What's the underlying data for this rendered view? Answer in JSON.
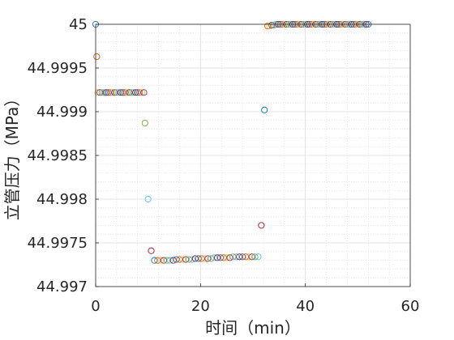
{
  "chart_data": {
    "type": "scatter",
    "xlabel": "时间（min）",
    "ylabel": "立管压力（MPa）",
    "xlim": [
      0,
      60
    ],
    "ylim": [
      44.997,
      45
    ],
    "x_ticks": [
      "0",
      "20",
      "40",
      "60"
    ],
    "y_ticks": [
      "44.997",
      "44.9975",
      "44.998",
      "44.9985",
      "44.999",
      "44.9995",
      "45"
    ],
    "grid": "major and minor, dotted",
    "marker": "open circle",
    "colors": [
      "#0072BD",
      "#D95319",
      "#EDB120",
      "#7E2F8E",
      "#77AC30",
      "#4DBEEE",
      "#A2142F"
    ],
    "points": [
      [
        0.0,
        45.0
      ],
      [
        0.2,
        44.99963
      ],
      [
        0.4,
        44.99922
      ],
      [
        0.8,
        44.99922
      ],
      [
        1.2,
        44.99922
      ],
      [
        1.6,
        44.99922
      ],
      [
        2.0,
        44.99922
      ],
      [
        2.4,
        44.99922
      ],
      [
        2.8,
        44.99922
      ],
      [
        3.2,
        44.99922
      ],
      [
        3.6,
        44.99922
      ],
      [
        4.0,
        44.99922
      ],
      [
        4.4,
        44.99922
      ],
      [
        4.8,
        44.99922
      ],
      [
        5.2,
        44.99922
      ],
      [
        5.6,
        44.99922
      ],
      [
        6.0,
        44.99922
      ],
      [
        6.4,
        44.99922
      ],
      [
        6.8,
        44.99922
      ],
      [
        7.2,
        44.99922
      ],
      [
        7.6,
        44.99922
      ],
      [
        8.0,
        44.99922
      ],
      [
        8.4,
        44.99922
      ],
      [
        8.8,
        44.99922
      ],
      [
        9.2,
        44.99922
      ],
      [
        9.4,
        44.99887
      ],
      [
        10.0,
        44.998
      ],
      [
        10.6,
        44.99741
      ],
      [
        11.2,
        44.9973
      ],
      [
        11.8,
        44.9973
      ],
      [
        12.4,
        44.9973
      ],
      [
        13.0,
        44.9973
      ],
      [
        13.6,
        44.9973
      ],
      [
        14.2,
        44.9973
      ],
      [
        14.8,
        44.9973
      ],
      [
        15.4,
        44.99731
      ],
      [
        16.0,
        44.99731
      ],
      [
        16.6,
        44.99731
      ],
      [
        17.2,
        44.99731
      ],
      [
        17.8,
        44.99731
      ],
      [
        18.4,
        44.99731
      ],
      [
        19.0,
        44.99732
      ],
      [
        19.6,
        44.99732
      ],
      [
        20.2,
        44.99732
      ],
      [
        20.8,
        44.99732
      ],
      [
        21.4,
        44.99732
      ],
      [
        22.0,
        44.99732
      ],
      [
        22.6,
        44.99733
      ],
      [
        23.2,
        44.99733
      ],
      [
        23.8,
        44.99733
      ],
      [
        24.4,
        44.99733
      ],
      [
        25.0,
        44.99733
      ],
      [
        25.6,
        44.99733
      ],
      [
        26.2,
        44.99734
      ],
      [
        26.8,
        44.99734
      ],
      [
        27.4,
        44.99734
      ],
      [
        28.0,
        44.99734
      ],
      [
        28.6,
        44.99734
      ],
      [
        29.2,
        44.99734
      ],
      [
        29.8,
        44.99734
      ],
      [
        30.4,
        44.99734
      ],
      [
        31.0,
        44.99734
      ],
      [
        31.6,
        44.9977
      ],
      [
        32.2,
        44.99902
      ],
      [
        32.8,
        44.99998
      ],
      [
        33.2,
        44.99998
      ],
      [
        33.6,
        44.99999
      ],
      [
        34.0,
        44.99999
      ],
      [
        34.4,
        45.0
      ],
      [
        34.8,
        45.0
      ],
      [
        35.2,
        45.0
      ],
      [
        35.6,
        45.0
      ],
      [
        36.0,
        45.0
      ],
      [
        36.4,
        45.0
      ],
      [
        36.8,
        45.0
      ],
      [
        37.2,
        45.0
      ],
      [
        37.6,
        45.0
      ],
      [
        38.0,
        45.0
      ],
      [
        38.4,
        45.0
      ],
      [
        38.8,
        45.0
      ],
      [
        39.2,
        45.0
      ],
      [
        39.6,
        45.0
      ],
      [
        40.0,
        45.0
      ],
      [
        40.4,
        45.0
      ],
      [
        40.8,
        45.0
      ],
      [
        41.2,
        45.0
      ],
      [
        41.6,
        45.0
      ],
      [
        42.0,
        45.0
      ],
      [
        42.4,
        45.0
      ],
      [
        42.8,
        45.0
      ],
      [
        43.2,
        45.0
      ],
      [
        43.6,
        45.0
      ],
      [
        44.0,
        45.0
      ],
      [
        44.4,
        45.0
      ],
      [
        44.8,
        45.0
      ],
      [
        45.2,
        45.0
      ],
      [
        45.6,
        45.0
      ],
      [
        46.0,
        45.0
      ],
      [
        46.4,
        45.0
      ],
      [
        46.8,
        45.0
      ],
      [
        47.2,
        45.0
      ],
      [
        47.6,
        45.0
      ],
      [
        48.0,
        45.0
      ],
      [
        48.4,
        45.0
      ],
      [
        48.8,
        45.0
      ],
      [
        49.2,
        45.0
      ],
      [
        49.6,
        45.0
      ],
      [
        50.0,
        45.0
      ],
      [
        50.4,
        45.0
      ],
      [
        50.8,
        45.0
      ],
      [
        51.2,
        45.0
      ],
      [
        51.6,
        45.0
      ],
      [
        52.0,
        45.0
      ]
    ]
  }
}
